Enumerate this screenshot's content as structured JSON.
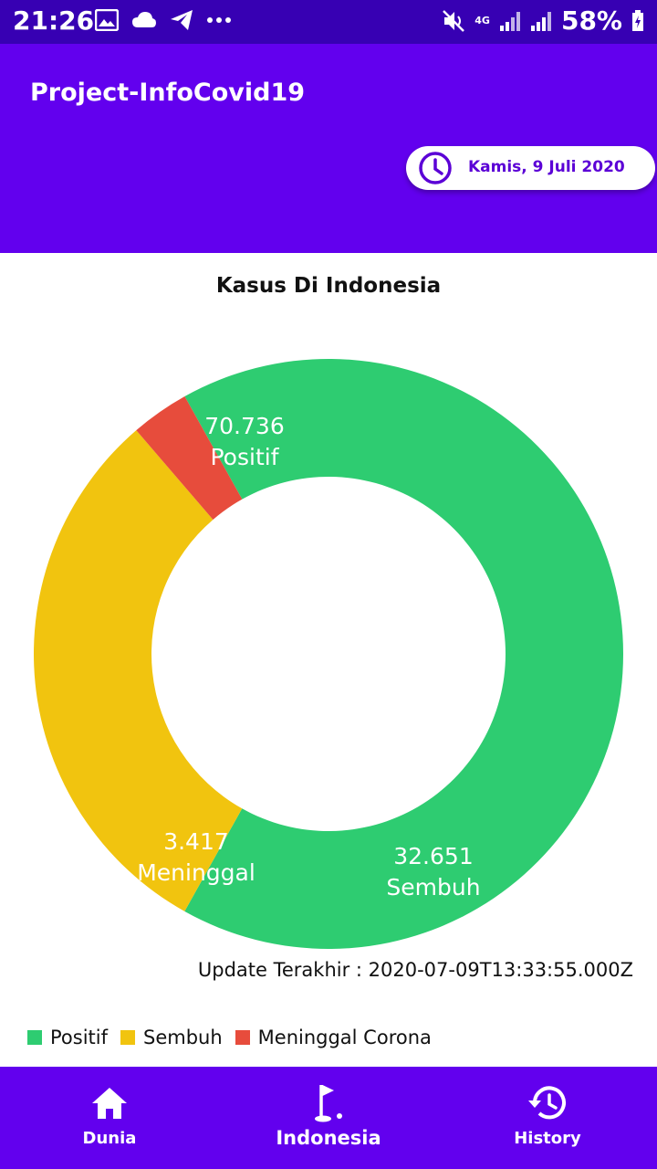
{
  "status_bar": {
    "time": "21:26",
    "network": "4G",
    "battery": "58%"
  },
  "app_bar": {
    "title": "Project-InfoCovid19",
    "date": "Kamis, 9 Juli 2020"
  },
  "chart_data": {
    "type": "pie",
    "title": "Kasus Di Indonesia",
    "slices": [
      {
        "label": "Positif",
        "value": 70736,
        "display": "70.736",
        "color": "#2ecc71"
      },
      {
        "label": "Sembuh",
        "value": 32651,
        "display": "32.651",
        "color": "#f1c40f"
      },
      {
        "label": "Meninggal",
        "value": 3417,
        "display": "3.417",
        "color": "#e74c3c"
      }
    ],
    "legend": [
      {
        "label": "Positif",
        "color": "#2ecc71"
      },
      {
        "label": "Sembuh",
        "color": "#f1c40f"
      },
      {
        "label": "Meninggal Corona",
        "color": "#e74c3c"
      }
    ],
    "legend_position": "bottom-left"
  },
  "update": {
    "text": "Update Terakhir : 2020-07-09T13:33:55.000Z"
  },
  "bottom_nav": {
    "items": [
      {
        "label": "Dunia",
        "icon": "home-icon"
      },
      {
        "label": "Indonesia",
        "icon": "golf-flag-icon",
        "active": true
      },
      {
        "label": "History",
        "icon": "history-icon"
      }
    ]
  },
  "colors": {
    "primary": "#6200ee",
    "primary_dark": "#3700b3"
  }
}
